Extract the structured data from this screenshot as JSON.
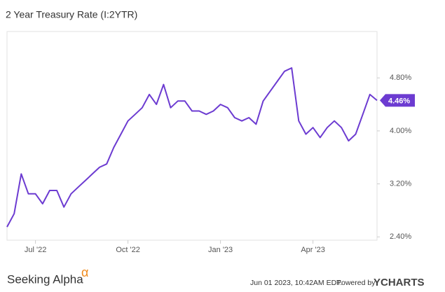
{
  "chart_data": {
    "type": "line",
    "title": "2 Year Treasury Rate (I:2YTR)",
    "categories": [
      null,
      null,
      null,
      null,
      "Jul '22",
      null,
      null,
      null,
      null,
      null,
      null,
      null,
      null,
      null,
      null,
      null,
      null,
      "Oct '22",
      null,
      null,
      null,
      null,
      null,
      null,
      null,
      null,
      null,
      null,
      null,
      null,
      "Jan '23",
      null,
      null,
      null,
      null,
      null,
      null,
      null,
      null,
      null,
      null,
      null,
      null,
      "Apr '23",
      null,
      null,
      null,
      null,
      null,
      null,
      null,
      null,
      null
    ],
    "series": [
      {
        "name": "2 Year Treasury Rate",
        "color": "#6c3bd1",
        "values": [
          2.55,
          2.75,
          3.35,
          3.05,
          3.05,
          2.9,
          3.1,
          3.1,
          2.85,
          3.05,
          3.15,
          3.25,
          3.35,
          3.45,
          3.5,
          3.75,
          3.95,
          4.15,
          4.25,
          4.35,
          4.55,
          4.4,
          4.7,
          4.35,
          4.45,
          4.45,
          4.3,
          4.3,
          4.25,
          4.3,
          4.4,
          4.35,
          4.2,
          4.15,
          4.2,
          4.1,
          4.45,
          4.6,
          4.75,
          4.9,
          4.95,
          4.15,
          3.95,
          4.05,
          3.9,
          4.05,
          4.15,
          4.05,
          3.85,
          3.95,
          4.25,
          4.55,
          4.46
        ],
        "value_labels": [
          null,
          null,
          null,
          null,
          null,
          null,
          null,
          null,
          null,
          null,
          null,
          null,
          null,
          null,
          null,
          null,
          null,
          null,
          null,
          null,
          null,
          null,
          null,
          null,
          null,
          null,
          null,
          null,
          null,
          null,
          null,
          null,
          null,
          null,
          null,
          null,
          null,
          null,
          null,
          null,
          null,
          null,
          null,
          null,
          null,
          null,
          null,
          null,
          null,
          null,
          null,
          null,
          "4.46%"
        ]
      }
    ],
    "ylim": [
      2.35,
      5.5
    ],
    "yticks": [
      {
        "value": 2.4,
        "label": "2.40%"
      },
      {
        "value": 3.2,
        "label": "3.20%"
      },
      {
        "value": 4.0,
        "label": "4.00%"
      },
      {
        "value": 4.8,
        "label": "4.80%"
      }
    ],
    "grid": false,
    "footer": {
      "brand": "Seeking Alpha",
      "brand_mark": "α",
      "timestamp": "Jun 01 2023, 10:42AM EDT.",
      "powered_by": "Powered by",
      "provider": "YCHARTS"
    }
  }
}
